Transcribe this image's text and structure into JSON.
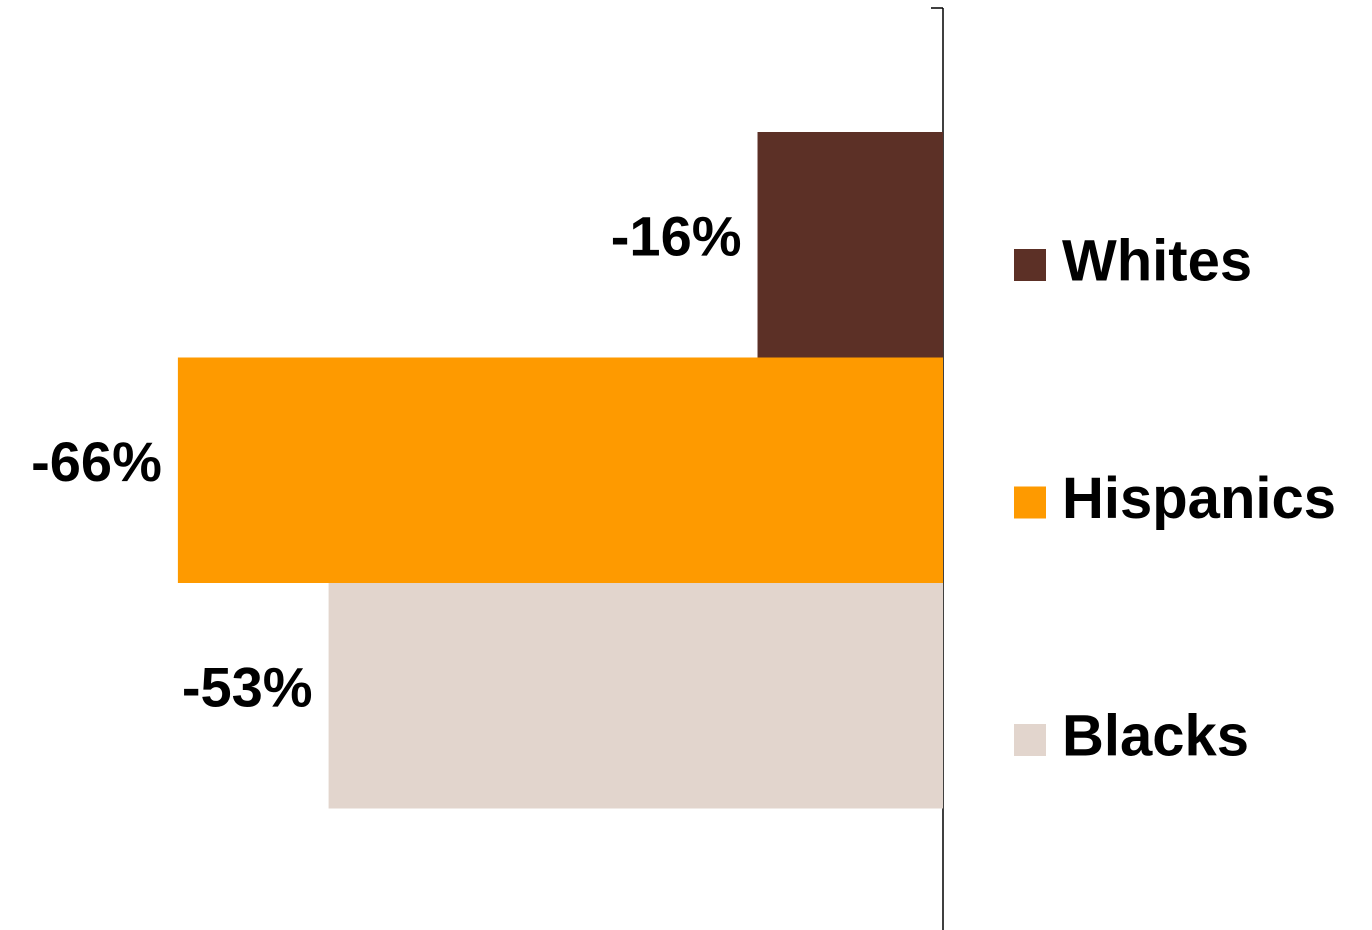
{
  "chart_data": {
    "type": "hbar",
    "categories": [
      null
    ],
    "xlim": [
      -81,
      0
    ],
    "legend": "right",
    "series": [
      {
        "name": "Whites",
        "color": "#5c3026",
        "values": [
          -16
        ],
        "value_labels": [
          "-16%"
        ]
      },
      {
        "name": "Hispanics",
        "color": "#fe9a00",
        "values": [
          -66
        ],
        "value_labels": [
          "-66%"
        ]
      },
      {
        "name": "Blacks",
        "color": "#e2d5cd",
        "values": [
          -53
        ],
        "value_labels": [
          "-53%"
        ]
      }
    ]
  }
}
